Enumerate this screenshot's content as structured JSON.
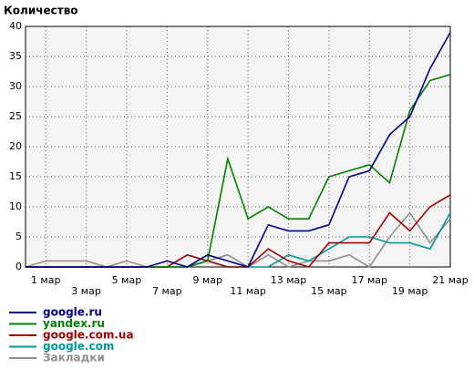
{
  "chart_data": {
    "type": "line",
    "title": "Количество",
    "categories": [
      null,
      "1 мар",
      null,
      "3 мар",
      null,
      "5 мар",
      null,
      "7 мар",
      null,
      "9 мар",
      null,
      "11 мар",
      null,
      "13 мар",
      null,
      "15 мар",
      null,
      "17 мар",
      null,
      "19 мар",
      null,
      "21 мар"
    ],
    "ylim": [
      0,
      40
    ],
    "yticks": [
      0,
      5,
      10,
      15,
      20,
      25,
      30,
      35,
      40
    ],
    "grid": true,
    "series": [
      {
        "name": "google.ru",
        "color": "#000080",
        "values": [
          0,
          0,
          0,
          0,
          0,
          0,
          0,
          1,
          0,
          2,
          1,
          0,
          7,
          6,
          6,
          7,
          15,
          16,
          22,
          25,
          33,
          39
        ]
      },
      {
        "name": "yandex.ru",
        "color": "#008000",
        "values": [
          0,
          0,
          0,
          0,
          0,
          0,
          0,
          0,
          0,
          1,
          18,
          8,
          10,
          8,
          8,
          15,
          16,
          17,
          14,
          26,
          31,
          32
        ]
      },
      {
        "name": "google.com.ua",
        "color": "#a00000",
        "values": [
          0,
          0,
          0,
          0,
          0,
          0,
          0,
          0,
          2,
          1,
          0,
          0,
          3,
          1,
          0,
          4,
          4,
          4,
          9,
          6,
          10,
          12
        ]
      },
      {
        "name": "google.com",
        "color": "#009999",
        "values": [
          0,
          0,
          0,
          0,
          0,
          0,
          0,
          0,
          0,
          1,
          0,
          0,
          0,
          2,
          1,
          3,
          5,
          5,
          4,
          4,
          3,
          9
        ]
      },
      {
        "name": "Закладки",
        "color": "#909090",
        "values": [
          0,
          1,
          1,
          1,
          0,
          1,
          0,
          0,
          0,
          1,
          2,
          0,
          2,
          0,
          1,
          1,
          2,
          0,
          5,
          9,
          4,
          8
        ]
      }
    ]
  }
}
